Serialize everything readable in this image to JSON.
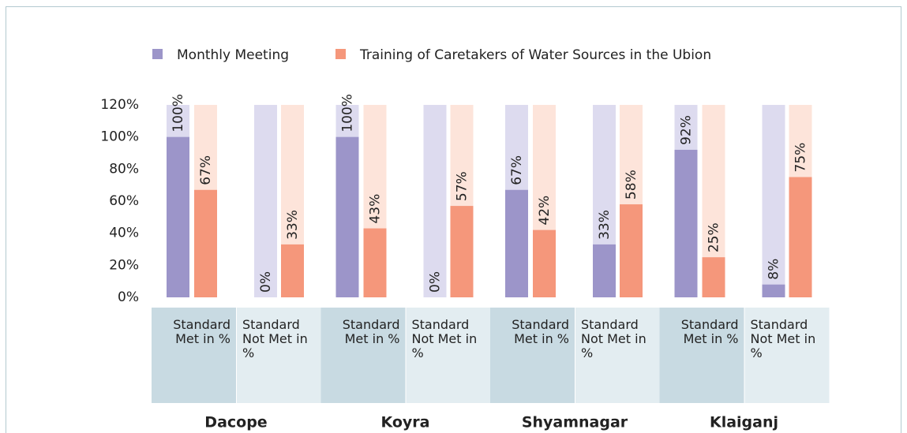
{
  "chart_data": {
    "type": "bar",
    "groups": [
      "Dacope",
      "Koyra",
      "Shyamnagar",
      "Klaiganj"
    ],
    "categories": [
      "Standard Met in %",
      "Standard Not Met in %",
      "Standard Met in %",
      "Standard Not Met in %",
      "Standard Met in %",
      "Standard Not Met in %",
      "Standard Met in %",
      "Standard Not Met in %"
    ],
    "series": [
      {
        "name": "Monthly Meeting",
        "color": "#9c95c9",
        "background": "#dddbef",
        "values": [
          100,
          0,
          100,
          0,
          67,
          33,
          92,
          8
        ],
        "value_labels": [
          "100%",
          "0%",
          "100%",
          "0%",
          "67%",
          "33%",
          "92%",
          "8%"
        ]
      },
      {
        "name": "Training of Caretakers of Water Sources in the Ubion",
        "color": "#f5977b",
        "background": "#fde4da",
        "values": [
          67,
          33,
          43,
          57,
          42,
          58,
          25,
          75
        ],
        "value_labels": [
          "67%",
          "33%",
          "43%",
          "57%",
          "42%",
          "58%",
          "25%",
          "75%"
        ]
      }
    ],
    "ylim": [
      0,
      120
    ],
    "yticks": [
      {
        "value": 0,
        "label": "0%"
      },
      {
        "value": 20,
        "label": "20%"
      },
      {
        "value": 40,
        "label": "40%"
      },
      {
        "value": 60,
        "label": "60%"
      },
      {
        "value": 80,
        "label": "80%"
      },
      {
        "value": 100,
        "label": "100%"
      },
      {
        "value": 120,
        "label": "120%"
      }
    ],
    "legend": "top",
    "grid": false
  }
}
